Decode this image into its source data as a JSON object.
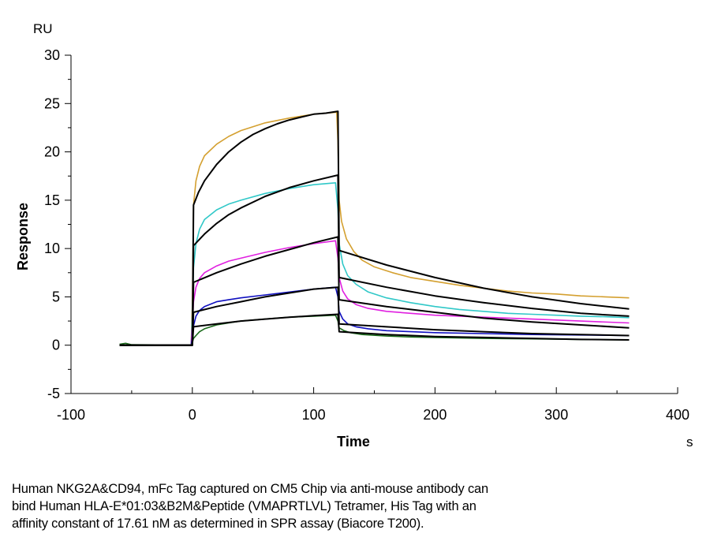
{
  "chart_data": {
    "type": "line",
    "title": "",
    "xlabel": "Time",
    "ylabel": "Response",
    "x_unit": "s",
    "y_unit": "RU",
    "xlim": [
      -100,
      400
    ],
    "ylim": [
      -5,
      30
    ],
    "x_ticks": [
      -100,
      0,
      100,
      200,
      300,
      400
    ],
    "x_tick_labels": [
      "-100",
      "0",
      "100",
      "200",
      "300",
      "400"
    ],
    "x_minor_step": 50,
    "y_ticks": [
      -5,
      0,
      5,
      10,
      15,
      20,
      25,
      30
    ],
    "y_tick_labels": [
      "-5",
      "0",
      "5",
      "10",
      "15",
      "20",
      "25",
      "30"
    ],
    "y_minor_step": 2.5,
    "grid": false,
    "legend": "none",
    "series": [
      {
        "name": "sensorgram-1",
        "color": "#d4a030",
        "kind": "measured",
        "points": [
          [
            -60,
            0
          ],
          [
            -1,
            0
          ],
          [
            0,
            4
          ],
          [
            1,
            14.5
          ],
          [
            3,
            17
          ],
          [
            6,
            18.5
          ],
          [
            10,
            19.6
          ],
          [
            20,
            20.8
          ],
          [
            30,
            21.6
          ],
          [
            40,
            22.2
          ],
          [
            60,
            23
          ],
          [
            80,
            23.5
          ],
          [
            100,
            23.9
          ],
          [
            119,
            24.1
          ],
          [
            120,
            21
          ],
          [
            121,
            15
          ],
          [
            123,
            12.8
          ],
          [
            127,
            11
          ],
          [
            133,
            9.7
          ],
          [
            140,
            8.8
          ],
          [
            150,
            8.1
          ],
          [
            165,
            7.5
          ],
          [
            180,
            7
          ],
          [
            200,
            6.6
          ],
          [
            220,
            6.2
          ],
          [
            240,
            5.9
          ],
          [
            260,
            5.6
          ],
          [
            280,
            5.4
          ],
          [
            300,
            5.3
          ],
          [
            320,
            5.1
          ],
          [
            340,
            5
          ],
          [
            360,
            4.9
          ]
        ]
      },
      {
        "name": "sensorgram-2",
        "color": "#30c8c8",
        "kind": "measured",
        "points": [
          [
            -60,
            0
          ],
          [
            -1,
            0
          ],
          [
            0,
            3
          ],
          [
            1,
            8
          ],
          [
            3,
            10.5
          ],
          [
            6,
            12
          ],
          [
            10,
            13
          ],
          [
            20,
            14
          ],
          [
            30,
            14.6
          ],
          [
            40,
            15
          ],
          [
            60,
            15.7
          ],
          [
            80,
            16.2
          ],
          [
            100,
            16.6
          ],
          [
            118,
            16.8
          ],
          [
            120,
            14
          ],
          [
            121,
            10.5
          ],
          [
            124,
            8.4
          ],
          [
            128,
            7.2
          ],
          [
            135,
            6.3
          ],
          [
            145,
            5.5
          ],
          [
            160,
            4.9
          ],
          [
            180,
            4.4
          ],
          [
            200,
            4
          ],
          [
            220,
            3.7
          ],
          [
            240,
            3.5
          ],
          [
            260,
            3.3
          ],
          [
            280,
            3.2
          ],
          [
            300,
            3.1
          ],
          [
            320,
            3
          ],
          [
            340,
            2.95
          ],
          [
            360,
            2.85
          ]
        ]
      },
      {
        "name": "sensorgram-3",
        "color": "#e020e0",
        "kind": "measured",
        "points": [
          [
            -60,
            0
          ],
          [
            -1,
            0
          ],
          [
            0,
            2
          ],
          [
            1,
            4.5
          ],
          [
            3,
            6
          ],
          [
            6,
            6.9
          ],
          [
            10,
            7.5
          ],
          [
            20,
            8.2
          ],
          [
            30,
            8.7
          ],
          [
            40,
            9
          ],
          [
            60,
            9.6
          ],
          [
            80,
            10.1
          ],
          [
            100,
            10.5
          ],
          [
            118,
            10.8
          ],
          [
            120,
            9
          ],
          [
            121,
            7
          ],
          [
            124,
            5.6
          ],
          [
            128,
            4.8
          ],
          [
            135,
            4.2
          ],
          [
            145,
            3.8
          ],
          [
            160,
            3.5
          ],
          [
            180,
            3.3
          ],
          [
            200,
            3.1
          ],
          [
            240,
            2.9
          ],
          [
            280,
            2.7
          ],
          [
            320,
            2.5
          ],
          [
            360,
            2.3
          ]
        ]
      },
      {
        "name": "sensorgram-4",
        "color": "#1010c0",
        "kind": "measured",
        "points": [
          [
            -60,
            0
          ],
          [
            -1,
            0
          ],
          [
            0,
            0.8
          ],
          [
            1,
            2
          ],
          [
            3,
            3
          ],
          [
            6,
            3.6
          ],
          [
            10,
            4
          ],
          [
            20,
            4.5
          ],
          [
            30,
            4.7
          ],
          [
            40,
            4.9
          ],
          [
            60,
            5.2
          ],
          [
            80,
            5.5
          ],
          [
            100,
            5.8
          ],
          [
            118,
            6
          ],
          [
            120,
            5
          ],
          [
            121,
            3.5
          ],
          [
            124,
            2.7
          ],
          [
            128,
            2.2
          ],
          [
            135,
            1.9
          ],
          [
            145,
            1.7
          ],
          [
            160,
            1.5
          ],
          [
            180,
            1.4
          ],
          [
            200,
            1.3
          ],
          [
            240,
            1.2
          ],
          [
            280,
            1.1
          ],
          [
            320,
            1.05
          ],
          [
            360,
            1
          ]
        ]
      },
      {
        "name": "sensorgram-5",
        "color": "#1a6a1a",
        "kind": "measured",
        "points": [
          [
            -60,
            0.1
          ],
          [
            -55,
            0.2
          ],
          [
            -50,
            0.05
          ],
          [
            -1,
            0
          ],
          [
            0,
            0.3
          ],
          [
            1,
            0.7
          ],
          [
            3,
            1
          ],
          [
            6,
            1.4
          ],
          [
            10,
            1.7
          ],
          [
            20,
            2.1
          ],
          [
            30,
            2.3
          ],
          [
            40,
            2.5
          ],
          [
            60,
            2.7
          ],
          [
            80,
            2.9
          ],
          [
            100,
            3
          ],
          [
            118,
            3.1
          ],
          [
            120,
            2.5
          ],
          [
            121,
            1.8
          ],
          [
            125,
            1.5
          ],
          [
            130,
            1.3
          ],
          [
            140,
            1.1
          ],
          [
            160,
            0.95
          ],
          [
            180,
            0.85
          ],
          [
            200,
            0.8
          ],
          [
            240,
            0.7
          ],
          [
            280,
            0.65
          ],
          [
            320,
            0.6
          ],
          [
            360,
            0.55
          ]
        ]
      },
      {
        "name": "fit-1",
        "color": "#000000",
        "kind": "fit",
        "points": [
          [
            -60,
            0
          ],
          [
            0,
            0
          ],
          [
            1,
            14.5
          ],
          [
            5,
            15.8
          ],
          [
            10,
            17
          ],
          [
            20,
            18.7
          ],
          [
            30,
            20
          ],
          [
            40,
            21
          ],
          [
            50,
            21.8
          ],
          [
            60,
            22.4
          ],
          [
            70,
            22.9
          ],
          [
            80,
            23.3
          ],
          [
            90,
            23.6
          ],
          [
            100,
            23.9
          ],
          [
            110,
            24
          ],
          [
            120,
            24.2
          ],
          [
            121,
            9.8
          ],
          [
            160,
            8.3
          ],
          [
            200,
            7
          ],
          [
            240,
            5.9
          ],
          [
            280,
            5
          ],
          [
            320,
            4.3
          ],
          [
            360,
            3.75
          ]
        ]
      },
      {
        "name": "fit-2",
        "color": "#000000",
        "kind": "fit",
        "points": [
          [
            -60,
            0
          ],
          [
            0,
            0
          ],
          [
            1,
            10.3
          ],
          [
            10,
            11.5
          ],
          [
            20,
            12.6
          ],
          [
            30,
            13.5
          ],
          [
            40,
            14.2
          ],
          [
            60,
            15.4
          ],
          [
            80,
            16.3
          ],
          [
            100,
            17
          ],
          [
            120,
            17.6
          ],
          [
            121,
            7
          ],
          [
            160,
            6
          ],
          [
            200,
            5.1
          ],
          [
            240,
            4.4
          ],
          [
            280,
            3.8
          ],
          [
            320,
            3.3
          ],
          [
            360,
            3
          ]
        ]
      },
      {
        "name": "fit-3",
        "color": "#000000",
        "kind": "fit",
        "points": [
          [
            -60,
            0
          ],
          [
            0,
            0
          ],
          [
            1,
            6.5
          ],
          [
            20,
            7.5
          ],
          [
            40,
            8.4
          ],
          [
            60,
            9.2
          ],
          [
            80,
            9.9
          ],
          [
            100,
            10.6
          ],
          [
            120,
            11.2
          ],
          [
            121,
            4.7
          ],
          [
            160,
            4
          ],
          [
            200,
            3.4
          ],
          [
            240,
            2.8
          ],
          [
            280,
            2.4
          ],
          [
            320,
            2.1
          ],
          [
            360,
            1.8
          ]
        ]
      },
      {
        "name": "fit-4",
        "color": "#000000",
        "kind": "fit",
        "points": [
          [
            -60,
            0
          ],
          [
            0,
            0
          ],
          [
            1,
            3.4
          ],
          [
            20,
            4
          ],
          [
            40,
            4.5
          ],
          [
            60,
            5
          ],
          [
            80,
            5.4
          ],
          [
            100,
            5.8
          ],
          [
            120,
            6
          ],
          [
            121,
            2.2
          ],
          [
            160,
            1.9
          ],
          [
            200,
            1.6
          ],
          [
            240,
            1.4
          ],
          [
            280,
            1.2
          ],
          [
            320,
            1.1
          ],
          [
            360,
            1
          ]
        ]
      },
      {
        "name": "fit-5",
        "color": "#000000",
        "kind": "fit",
        "points": [
          [
            -60,
            0
          ],
          [
            0,
            0
          ],
          [
            1,
            1.9
          ],
          [
            20,
            2.2
          ],
          [
            40,
            2.5
          ],
          [
            60,
            2.7
          ],
          [
            80,
            2.9
          ],
          [
            100,
            3.05
          ],
          [
            120,
            3.2
          ],
          [
            121,
            1.4
          ],
          [
            160,
            1.1
          ],
          [
            200,
            0.9
          ],
          [
            240,
            0.8
          ],
          [
            280,
            0.7
          ],
          [
            320,
            0.6
          ],
          [
            360,
            0.55
          ]
        ]
      }
    ]
  },
  "caption": {
    "lines": [
      "Human NKG2A&CD94, mFc Tag captured on CM5 Chip via anti-mouse antibody can",
      "bind Human HLA-E*01:03&B2M&Peptide (VMAPRTLVL) Tetramer, His Tag with an",
      "affinity constant of 17.61 nM as determined in SPR assay (Biacore T200)."
    ]
  }
}
